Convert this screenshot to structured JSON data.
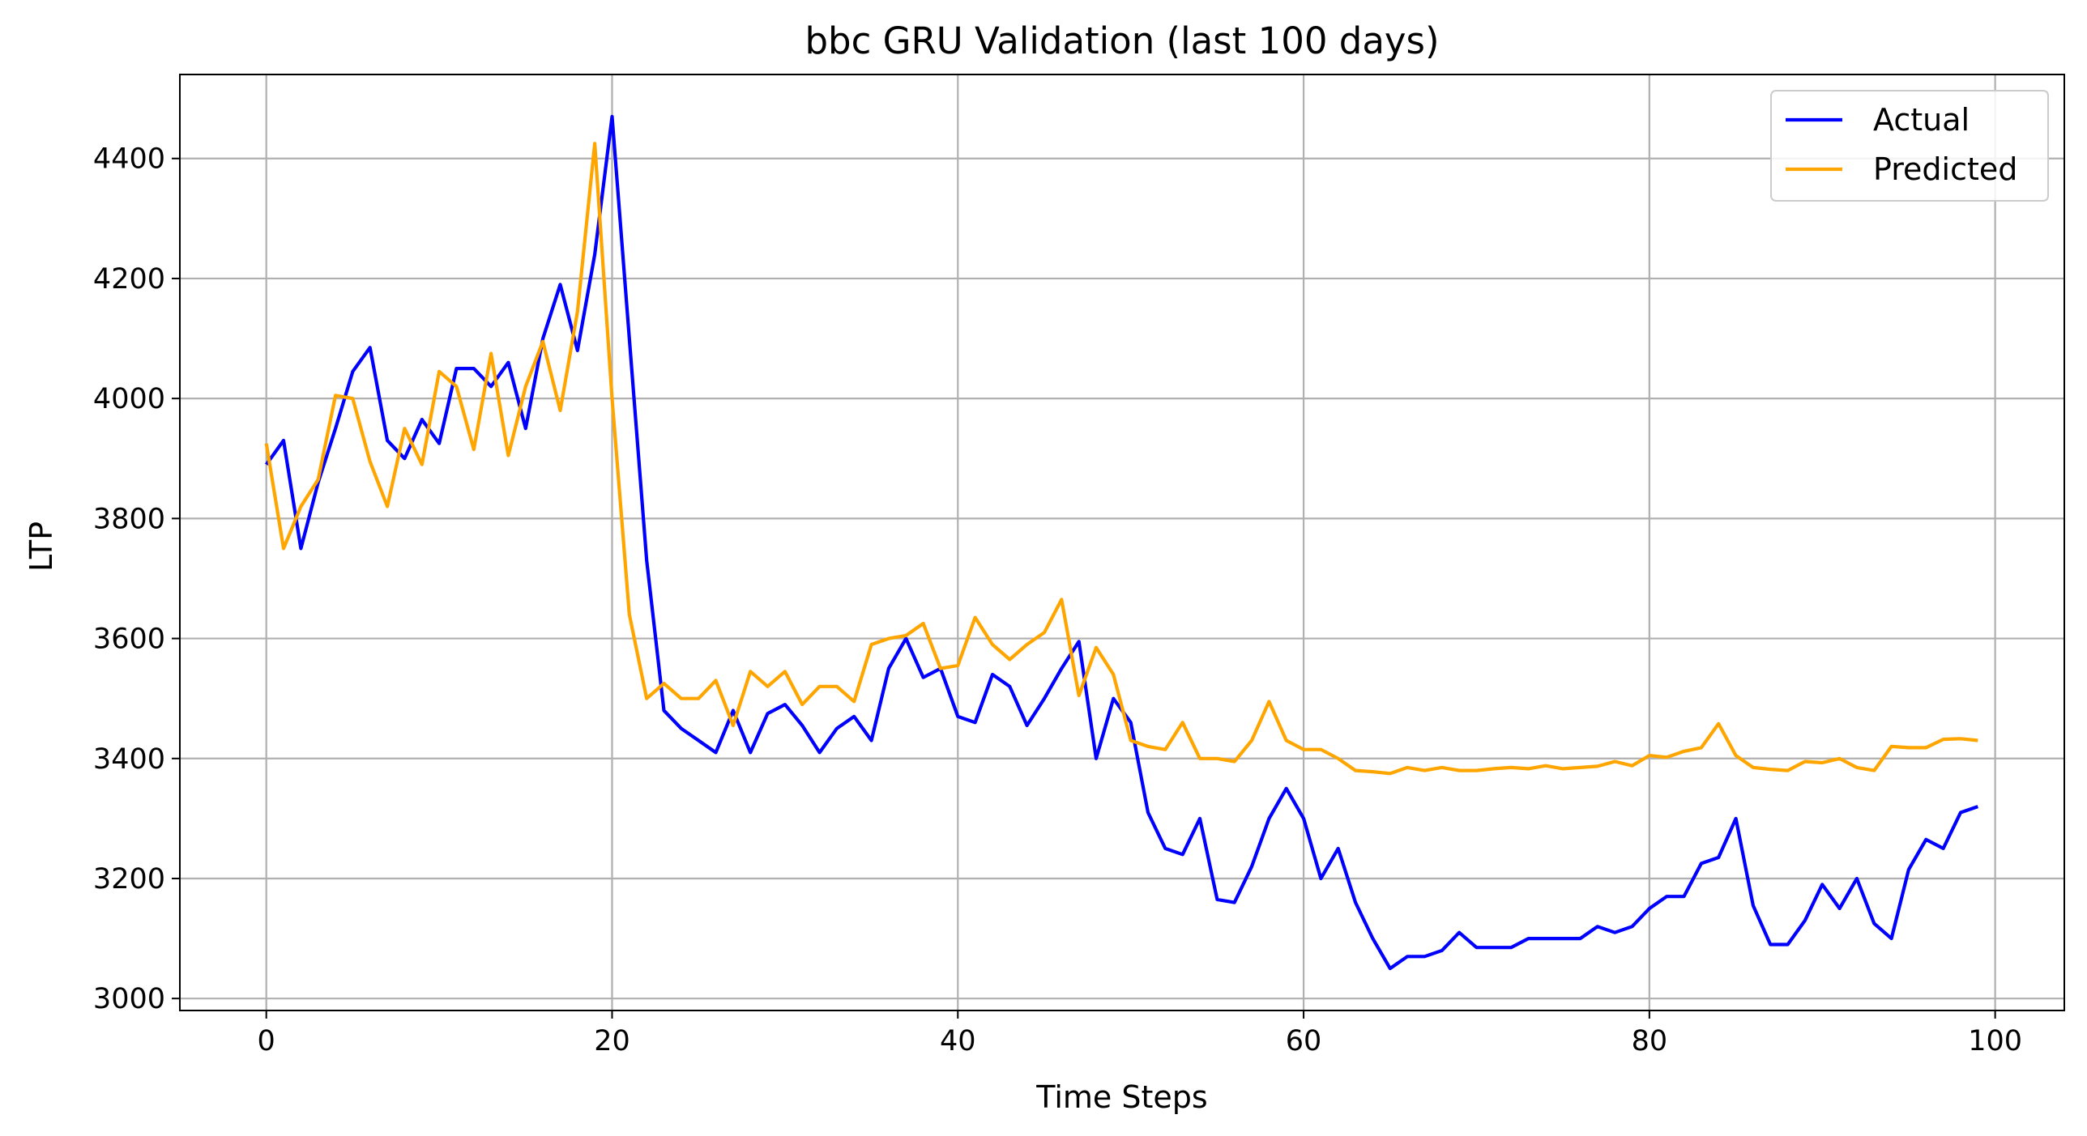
{
  "chart_data": {
    "type": "line",
    "title": "bbc GRU Validation (last 100 days)",
    "xlabel": "Time Steps",
    "ylabel": "LTP",
    "xlim": [
      -5,
      104
    ],
    "ylim": [
      2980,
      4540
    ],
    "xticks": [
      0,
      20,
      40,
      60,
      80,
      100
    ],
    "yticks": [
      3000,
      3200,
      3400,
      3600,
      3800,
      4000,
      4200,
      4400
    ],
    "grid": true,
    "legend": "top-right",
    "x": [
      0,
      1,
      2,
      3,
      4,
      5,
      6,
      7,
      8,
      9,
      10,
      11,
      12,
      13,
      14,
      15,
      16,
      17,
      18,
      19,
      20,
      21,
      22,
      23,
      24,
      25,
      26,
      27,
      28,
      29,
      30,
      31,
      32,
      33,
      34,
      35,
      36,
      37,
      38,
      39,
      40,
      41,
      42,
      43,
      44,
      45,
      46,
      47,
      48,
      49,
      50,
      51,
      52,
      53,
      54,
      55,
      56,
      57,
      58,
      59,
      60,
      61,
      62,
      63,
      64,
      65,
      66,
      67,
      68,
      69,
      70,
      71,
      72,
      73,
      74,
      75,
      76,
      77,
      78,
      79,
      80,
      81,
      82,
      83,
      84,
      85,
      86,
      87,
      88,
      89,
      90,
      91,
      92,
      93,
      94,
      95,
      96,
      97,
      98,
      99
    ],
    "series": [
      {
        "name": "Actual",
        "color": "#0000ff",
        "values": [
          3890,
          3930,
          3750,
          3860,
          3950,
          4045,
          4085,
          3930,
          3900,
          3965,
          3925,
          4050,
          4050,
          4020,
          4060,
          3950,
          4100,
          4190,
          4080,
          4240,
          4470,
          4100,
          3730,
          3480,
          3450,
          3430,
          3410,
          3480,
          3410,
          3475,
          3490,
          3455,
          3410,
          3450,
          3470,
          3430,
          3550,
          3600,
          3535,
          3550,
          3470,
          3460,
          3540,
          3520,
          3455,
          3500,
          3550,
          3595,
          3400,
          3500,
          3460,
          3310,
          3250,
          3240,
          3300,
          3165,
          3160,
          3220,
          3300,
          3350,
          3300,
          3200,
          3250,
          3160,
          3100,
          3050,
          3070,
          3070,
          3080,
          3110,
          3085,
          3085,
          3085,
          3100,
          3100,
          3100,
          3100,
          3120,
          3110,
          3120,
          3150,
          3170,
          3170,
          3225,
          3235,
          3300,
          3155,
          3090,
          3090,
          3130,
          3190,
          3150,
          3200,
          3125,
          3100,
          3215,
          3265,
          3250,
          3310,
          3320
        ]
      },
      {
        "name": "Predicted",
        "color": "#ffa500",
        "values": [
          3925,
          3750,
          3820,
          3865,
          4005,
          4000,
          3895,
          3820,
          3950,
          3890,
          4045,
          4020,
          3915,
          4075,
          3905,
          4020,
          4095,
          3980,
          4145,
          4425,
          4000,
          3640,
          3500,
          3525,
          3500,
          3500,
          3530,
          3455,
          3545,
          3520,
          3545,
          3490,
          3520,
          3520,
          3495,
          3590,
          3600,
          3605,
          3625,
          3550,
          3555,
          3635,
          3590,
          3565,
          3590,
          3610,
          3665,
          3505,
          3585,
          3540,
          3430,
          3420,
          3415,
          3460,
          3400,
          3400,
          3395,
          3430,
          3495,
          3430,
          3415,
          3415,
          3400,
          3380,
          3378,
          3375,
          3385,
          3380,
          3385,
          3380,
          3380,
          3383,
          3385,
          3383,
          3388,
          3383,
          3385,
          3387,
          3395,
          3388,
          3405,
          3402,
          3412,
          3418,
          3458,
          3405,
          3385,
          3382,
          3380,
          3395,
          3393,
          3400,
          3385,
          3380,
          3420,
          3418,
          3418,
          3432,
          3433,
          3430
        ]
      }
    ]
  }
}
